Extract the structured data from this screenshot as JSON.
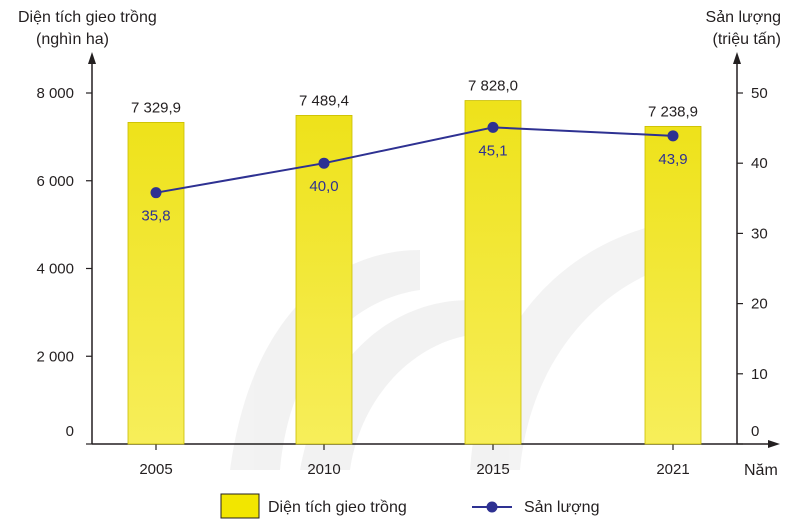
{
  "chart_data": {
    "type": "bar+line",
    "categories": [
      "2005",
      "2010",
      "2015",
      "2021"
    ],
    "y_left": {
      "title_line1": "Diện tích gieo trồng",
      "title_line2": "(nghìn ha)",
      "ticks": [
        0,
        2000,
        4000,
        6000,
        8000
      ],
      "tick_labels": [
        "0",
        "2 000",
        "4 000",
        "6 000",
        "8 000"
      ],
      "range": [
        0,
        8000
      ]
    },
    "y_right": {
      "title_line1": "Sản lượng",
      "title_line2": "(triệu tấn)",
      "ticks": [
        0,
        10,
        20,
        30,
        40,
        50
      ],
      "tick_labels": [
        "0",
        "10",
        "20",
        "30",
        "40",
        "50"
      ],
      "range": [
        0,
        50
      ]
    },
    "x_label": "Năm",
    "series": [
      {
        "name": "Diện tích gieo trồng",
        "type": "bar",
        "axis": "left",
        "values": [
          7329.9,
          7489.4,
          7828.0,
          7238.9
        ],
        "labels": [
          "7 329,9",
          "7 489,4",
          "7 828,0",
          "7 238,9"
        ],
        "color": "#f2e600"
      },
      {
        "name": "Sản lượng",
        "type": "line",
        "axis": "right",
        "values": [
          35.8,
          40.0,
          45.1,
          43.9
        ],
        "labels": [
          "35,8",
          "40,0",
          "45,1",
          "43,9"
        ],
        "color": "#2e3192"
      }
    ],
    "legend_position": "bottom",
    "grid": false
  }
}
